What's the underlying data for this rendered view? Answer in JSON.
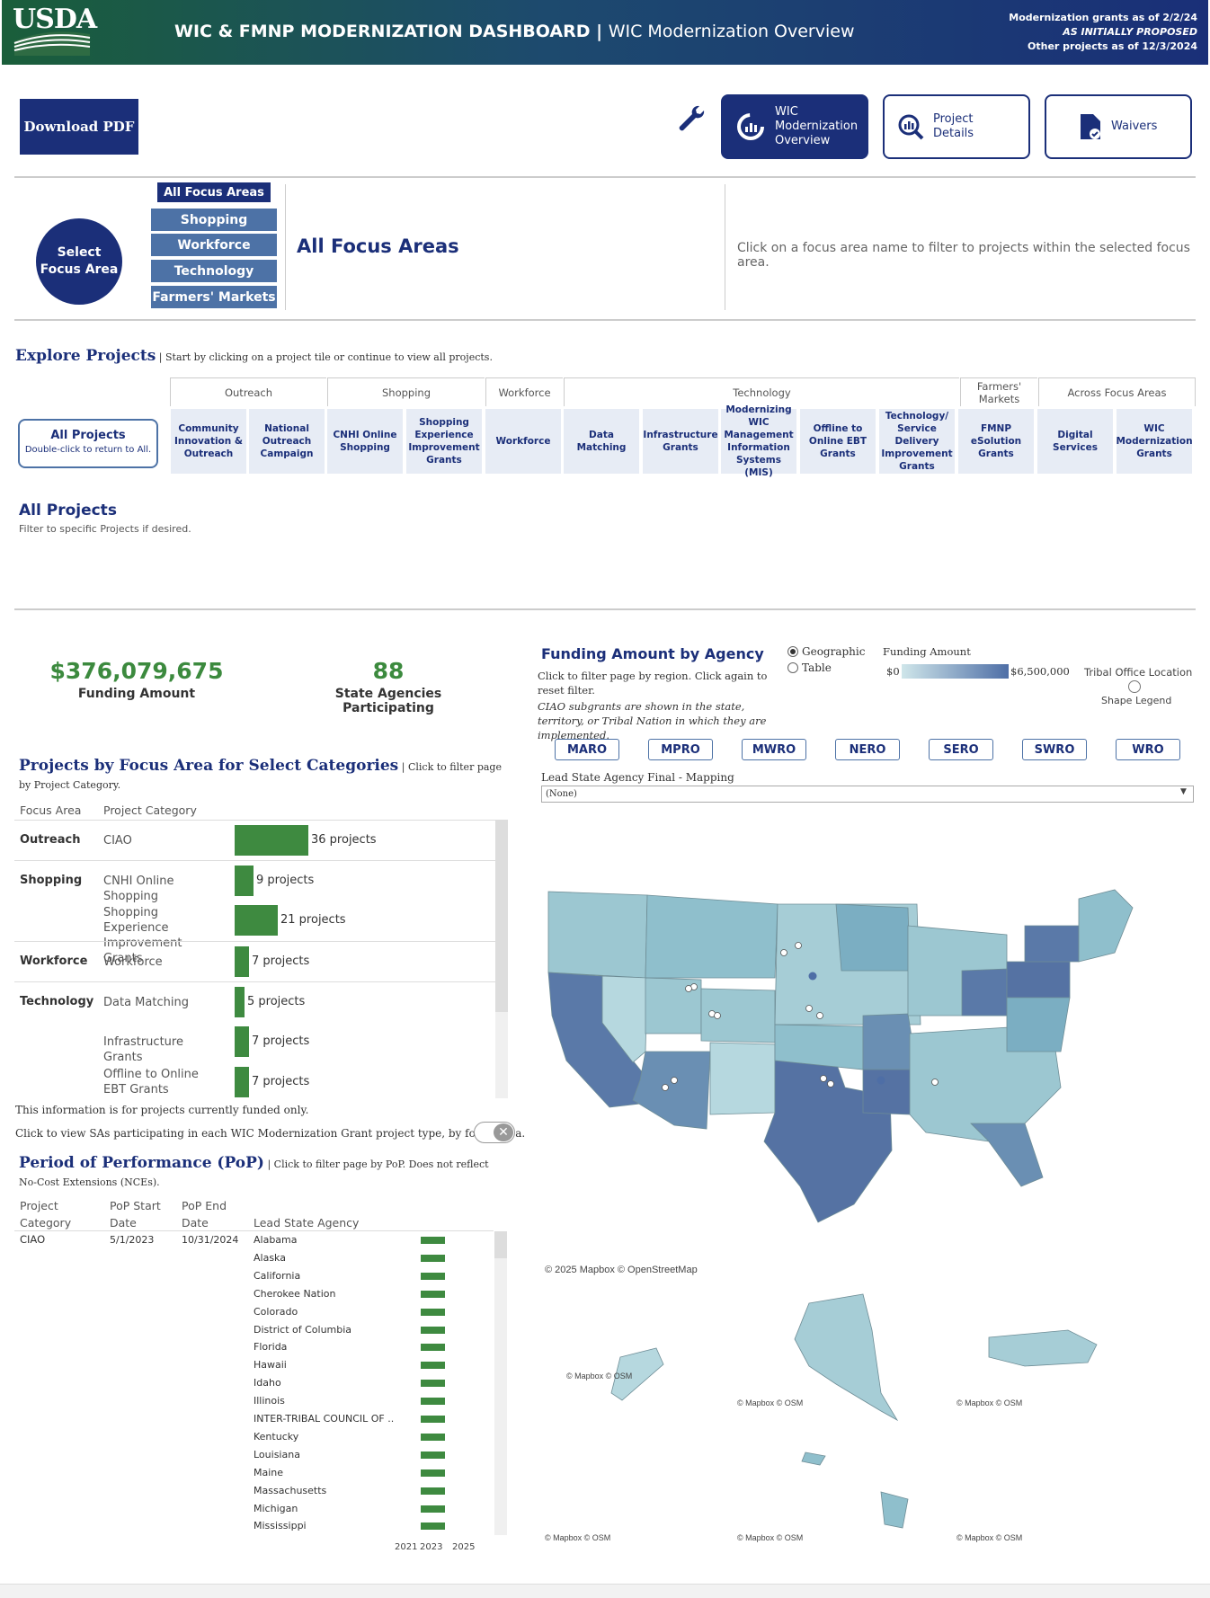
{
  "header": {
    "logo": "USDA",
    "title_main": "WIC & FMNP MODERNIZATION DASHBOARD",
    "title_sep": "|",
    "title_sub": "WIC Modernization Overview",
    "dates_line1": "Modernization grants as of 2/2/24",
    "dates_line2": "AS INITIALLY PROPOSED",
    "dates_line3": "Other projects as of 12/3/2024"
  },
  "toolbar": {
    "download_label": "Download PDF",
    "nav": [
      {
        "label": "WIC Modernization Overview",
        "icon": "gauge-icon"
      },
      {
        "label": "Project Details",
        "icon": "magnifier-chart-icon"
      },
      {
        "label": "Waivers",
        "icon": "document-check-icon"
      }
    ]
  },
  "focus": {
    "circle_label": "Select Focus Area",
    "all_label": "All Focus Areas",
    "options": [
      "Shopping",
      "Workforce",
      "Technology",
      "Farmers' Markets"
    ],
    "selected_title": "All Focus Areas",
    "note": "Click on a focus area name to filter to projects within the selected focus area."
  },
  "explore": {
    "title": "Explore Projects",
    "subtitle": " | Start by clicking on a project tile or continue to view all projects.",
    "all_projects_label": "All Projects",
    "all_projects_sub": "Double-click to return to All.",
    "groups": [
      "Outreach",
      "Shopping",
      "Workforce",
      "Technology",
      "Farmers' Markets",
      "Across Focus Areas"
    ],
    "tiles": [
      "Community Innovation & Outreach",
      "National Outreach Campaign",
      "CNHI Online Shopping",
      "Shopping Experience Improvement Grants",
      "Workforce",
      "Data Matching",
      "Infrastructure Grants",
      "Modernizing WIC Management Information Systems (MIS)",
      "Offline to Online EBT Grants",
      "Technology/ Service Delivery Improvement Grants",
      "FMNP eSolution Grants",
      "Digital Services",
      "WIC Modernization Grants"
    ],
    "section_title": "All Projects",
    "section_sub": "Filter to specific Projects if desired."
  },
  "kpis": {
    "funding_value": "$376,079,675",
    "funding_label": "Funding Amount",
    "agencies_value": "88",
    "agencies_label": "State Agencies Participating"
  },
  "projects_by_focus": {
    "title": "Projects by Focus Area for Select Categories",
    "subtitle": " | Click to filter page by Project Category.",
    "col_focus": "Focus Area",
    "col_category": "Project Category",
    "rows": [
      {
        "focus": "Outreach",
        "category": "CIAO",
        "count": 36,
        "label": "36 projects"
      },
      {
        "focus": "Shopping",
        "category": "CNHI Online Shopping",
        "count": 9,
        "label": "9 projects"
      },
      {
        "focus": "",
        "category": "Shopping Experience Improvement Grants",
        "count": 21,
        "label": "21 projects"
      },
      {
        "focus": "Workforce",
        "category": "Workforce",
        "count": 7,
        "label": "7 projects"
      },
      {
        "focus": "Technology",
        "category": "Data Matching",
        "count": 5,
        "label": "5 projects"
      },
      {
        "focus": "",
        "category": "Infrastructure Grants",
        "count": 7,
        "label": "7 projects"
      },
      {
        "focus": "",
        "category": "Offline to Online EBT Grants",
        "count": 7,
        "label": "7 projects"
      }
    ],
    "note": "This information is for projects currently funded only.",
    "toggle_note": "Click to view SAs participating in each WIC Modernization Grant project type, by focus area."
  },
  "pop": {
    "title": "Period of Performance (PoP)",
    "subtitle": " | Click to filter page by PoP. Does not reflect No-Cost Extensions (NCEs).",
    "col_category": "Project Category",
    "col_start": "PoP Start Date",
    "col_end": "PoP End Date",
    "col_agency": "Lead State Agency",
    "category": "CIAO",
    "start": "5/1/2023",
    "end": "10/31/2024",
    "agencies": [
      "Alabama",
      "Alaska",
      "California",
      "Cherokee Nation",
      "Colorado",
      "District of Columbia",
      "Florida",
      "Hawaii",
      "Idaho",
      "Illinois",
      "INTER-TRIBAL COUNCIL OF ..",
      "Kentucky",
      "Louisiana",
      "Maine",
      "Massachusetts",
      "Michigan",
      "Mississippi"
    ],
    "years": [
      "2021",
      "2023",
      "2025"
    ]
  },
  "funding_by_agency": {
    "title": "Funding Amount by Agency",
    "instructions": "Click to filter page by region. Click again to reset filter.",
    "ciao_note": "CIAO subgrants are shown in the state, territory, or Tribal Nation in which they are implemented.",
    "view_options": [
      "Geographic",
      "Table"
    ],
    "legend_title": "Funding Amount",
    "legend_min": "$0",
    "legend_max": "$6,500,000",
    "tribal_label": "Tribal Office Location",
    "shape_legend": "Shape Legend",
    "regions": [
      "MARO",
      "MPRO",
      "MWRO",
      "NERO",
      "SERO",
      "SWRO",
      "WRO"
    ],
    "lead_label": "Lead State Agency Final - Mapping",
    "lead_value": "(None)",
    "credit_main": "© 2025 Mapbox  © OpenStreetMap",
    "credit_small": "© Mapbox  © OSM",
    "colors": {
      "low": "#cfe6ea",
      "mid": "#8ab8c8",
      "high": "#4e6ea6"
    }
  }
}
